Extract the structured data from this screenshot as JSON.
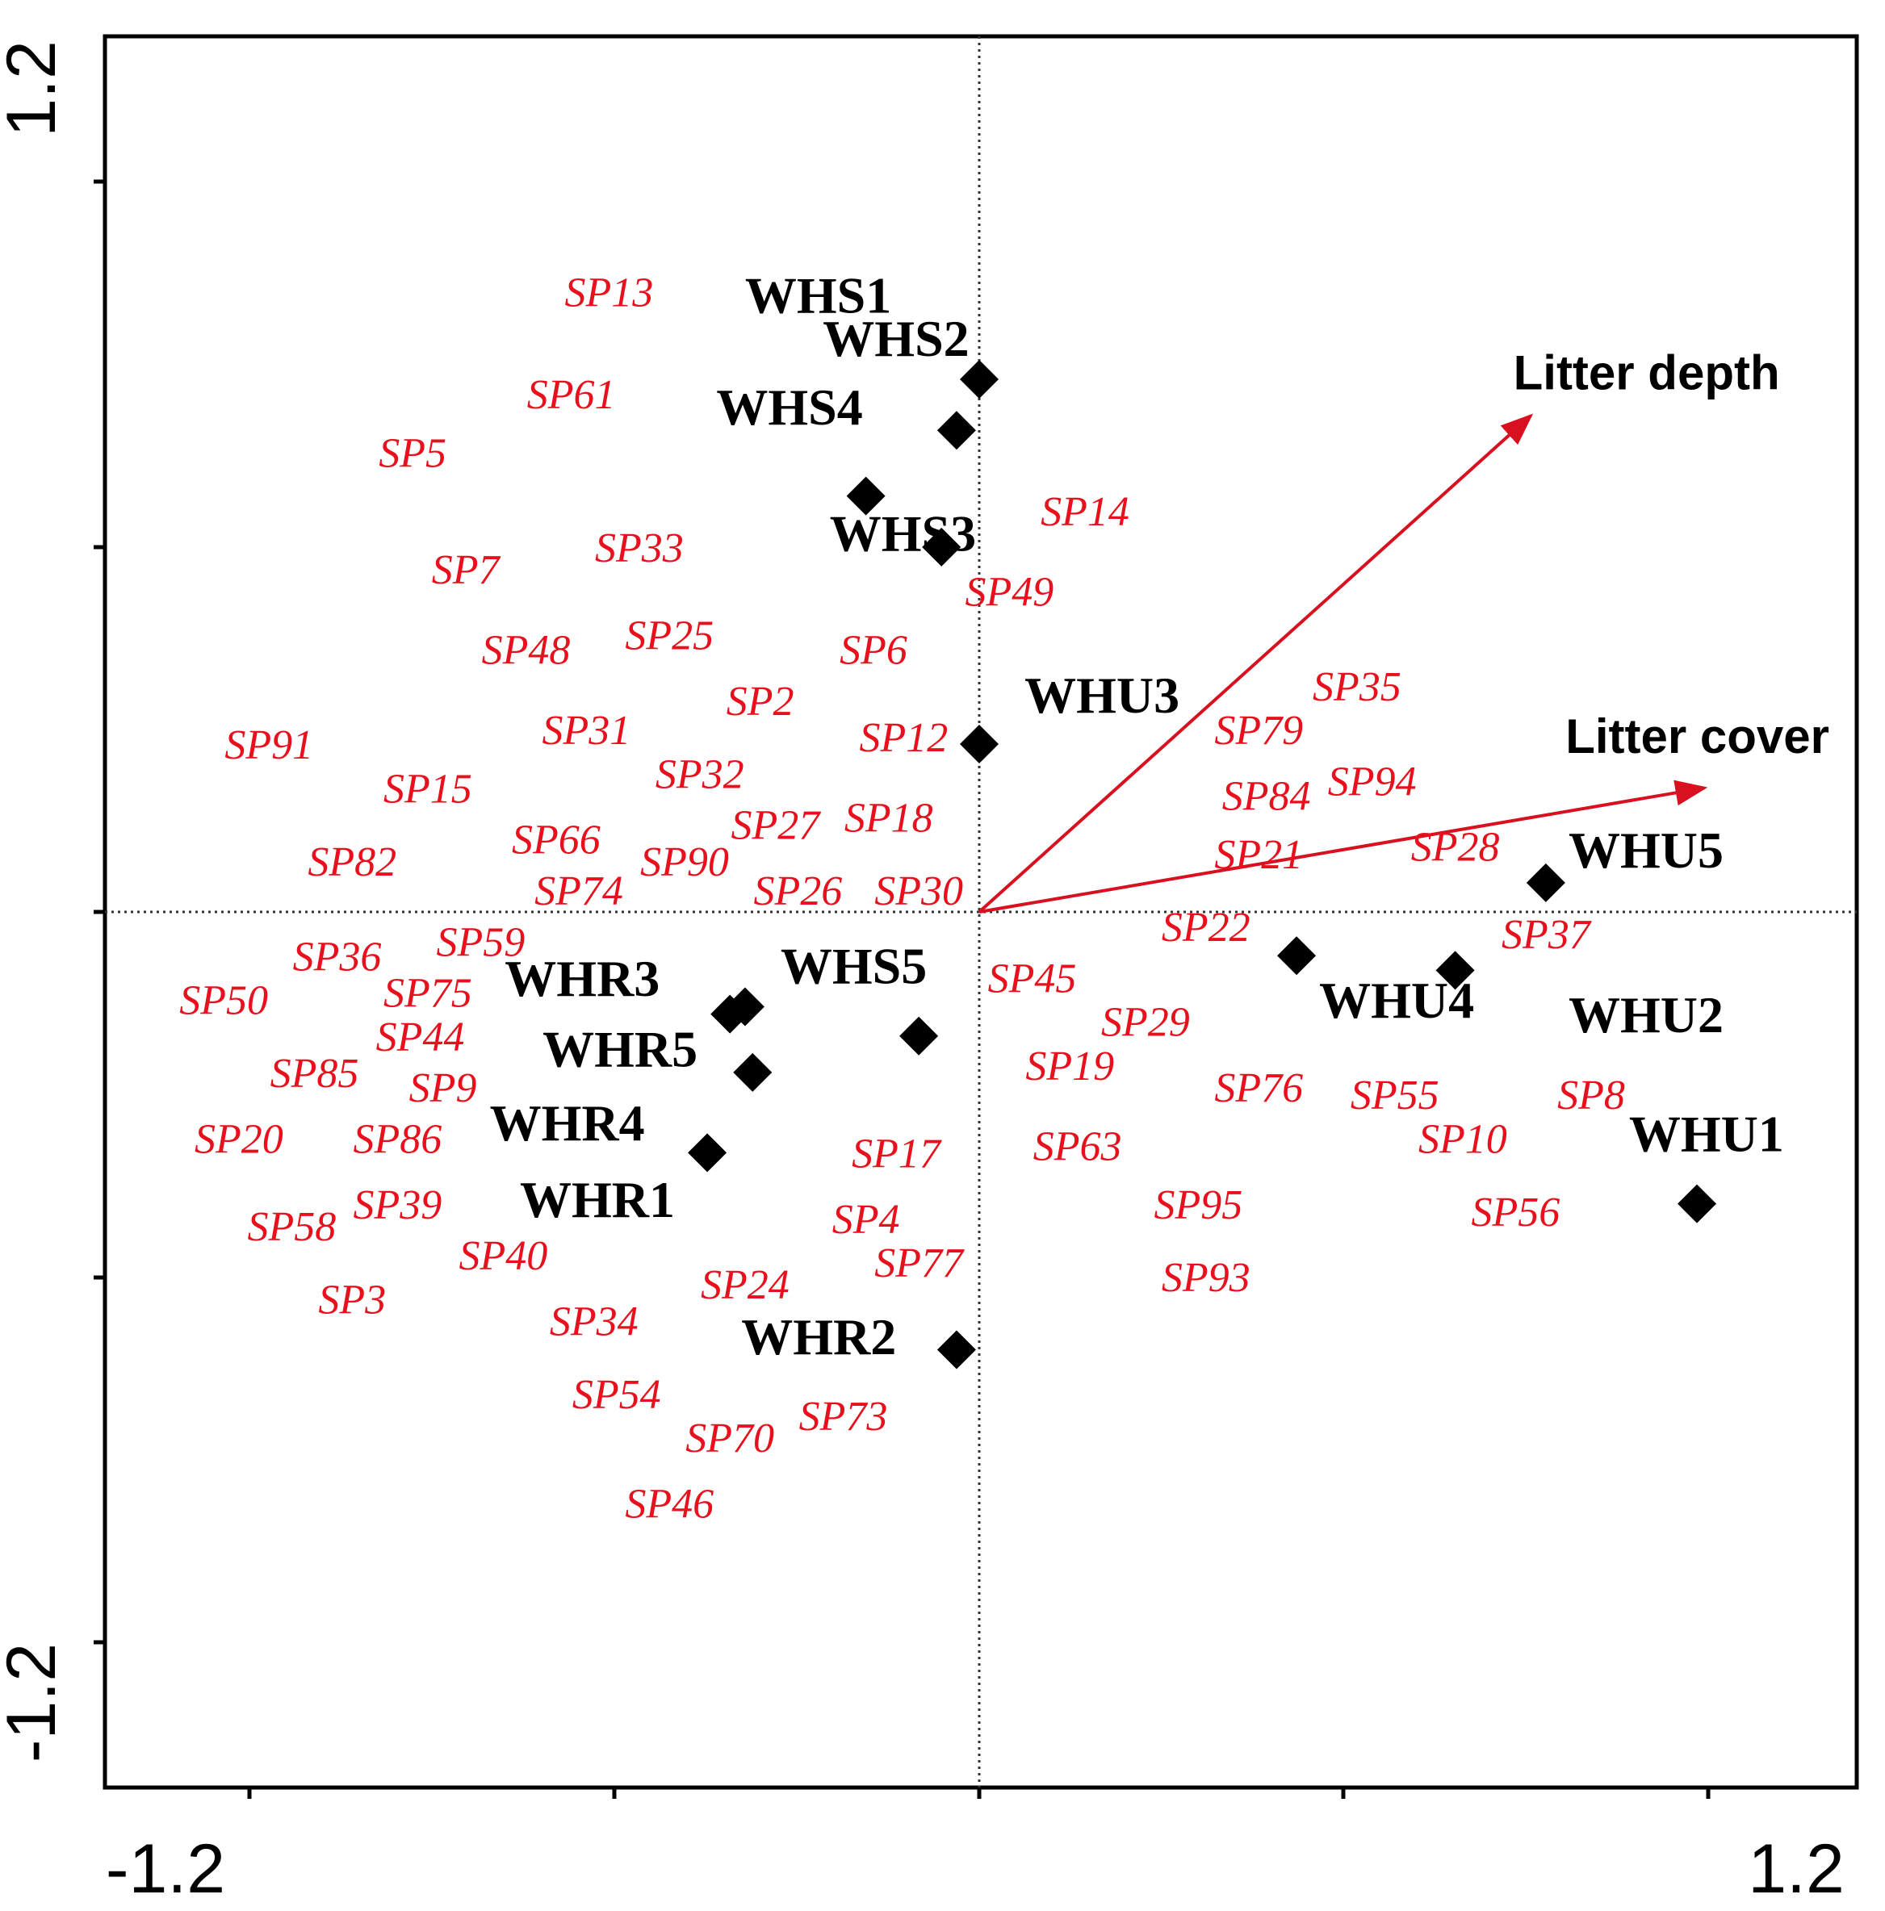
{
  "chart_data": {
    "type": "scatter",
    "xlim": [
      -1.2,
      1.2
    ],
    "ylim": [
      -1.2,
      1.2
    ],
    "x_ticks": [
      -1.2,
      1.2
    ],
    "y_ticks": [
      1.2,
      -1.2
    ],
    "x_tick_labels": [
      "-1.2",
      "1.2"
    ],
    "y_tick_labels": [
      "1.2",
      "-1.2"
    ],
    "grid": false,
    "colors": {
      "species": "#e8101c",
      "sites": "#000000",
      "arrows": "#d81020"
    },
    "env_vectors": [
      {
        "label": "Litter depth",
        "x": 0.73,
        "y": 0.68,
        "label_x": 0.707,
        "label_y": 0.716
      },
      {
        "label": "Litter cover",
        "x": 0.96,
        "y": 0.17,
        "label_x": 0.776,
        "label_y": 0.218
      }
    ],
    "sites": [
      {
        "label": "WHS1",
        "x": null,
        "y": null,
        "label_x": -0.31,
        "label_y": 0.821
      },
      {
        "label": "WHS2",
        "x": -0.03,
        "y": 0.66,
        "label_x": -0.207,
        "label_y": 0.762
      },
      {
        "label": "WHS4",
        "x": -0.15,
        "y": 0.57,
        "label_x": -0.348,
        "label_y": 0.668
      },
      {
        "label": "WHS3",
        "x": -0.05,
        "y": 0.5,
        "label_x": -0.198,
        "label_y": 0.495
      },
      {
        "label": "WHU3",
        "x": 0.0,
        "y": 0.23,
        "label_x": 0.06,
        "label_y": 0.273
      },
      {
        "label": "WHU5",
        "x": 0.75,
        "y": 0.04,
        "label_x": 0.78,
        "label_y": 0.061
      },
      {
        "label": "WHU4",
        "x": 0.42,
        "y": -0.06,
        "label_x": 0.45,
        "label_y": -0.145
      },
      {
        "label": "WHU2",
        "x": 0.63,
        "y": -0.08,
        "label_x": 0.78,
        "label_y": -0.165
      },
      {
        "label": "WHU1",
        "x": 0.95,
        "y": -0.4,
        "label_x": 0.86,
        "label_y": -0.328
      },
      {
        "label": "WHS5",
        "x": -0.08,
        "y": -0.17,
        "label_x": -0.263,
        "label_y": -0.098
      },
      {
        "label": "WHR3",
        "x": -0.33,
        "y": -0.14,
        "label_x": -0.628,
        "label_y": -0.115
      },
      {
        "label": "WHR5",
        "x": -0.3,
        "y": -0.22,
        "label_x": -0.578,
        "label_y": -0.212
      },
      {
        "label": "WHR4",
        "x": -0.36,
        "y": -0.33,
        "label_x": -0.648,
        "label_y": -0.313
      },
      {
        "label": "WHR1",
        "x": null,
        "y": null,
        "label_x": -0.608,
        "label_y": -0.418
      },
      {
        "label": "WHR2",
        "x": -0.03,
        "y": -0.6,
        "label_x": -0.315,
        "label_y": -0.606
      },
      {
        "label": "",
        "x": -0.31,
        "y": -0.13
      },
      {
        "label": "",
        "x": 0.0,
        "y": 0.73
      }
    ],
    "species": [
      {
        "label": "SP13",
        "x": -0.49,
        "y": 0.83
      },
      {
        "label": "SP61",
        "x": -0.54,
        "y": 0.69
      },
      {
        "label": "SP5",
        "x": -0.75,
        "y": 0.61
      },
      {
        "label": "SP7",
        "x": -0.68,
        "y": 0.45
      },
      {
        "label": "SP33",
        "x": -0.45,
        "y": 0.48
      },
      {
        "label": "SP14",
        "x": 0.14,
        "y": 0.53
      },
      {
        "label": "SP49",
        "x": 0.04,
        "y": 0.42
      },
      {
        "label": "SP48",
        "x": -0.6,
        "y": 0.34
      },
      {
        "label": "SP25",
        "x": -0.41,
        "y": 0.36
      },
      {
        "label": "SP6",
        "x": -0.14,
        "y": 0.34
      },
      {
        "label": "SP2",
        "x": -0.29,
        "y": 0.27
      },
      {
        "label": "SP91",
        "x": -0.94,
        "y": 0.21
      },
      {
        "label": "SP31",
        "x": -0.52,
        "y": 0.23
      },
      {
        "label": "SP12",
        "x": -0.1,
        "y": 0.22
      },
      {
        "label": "SP15",
        "x": -0.73,
        "y": 0.15
      },
      {
        "label": "SP32",
        "x": -0.37,
        "y": 0.17
      },
      {
        "label": "SP27",
        "x": -0.27,
        "y": 0.1
      },
      {
        "label": "SP18",
        "x": -0.12,
        "y": 0.11
      },
      {
        "label": "SP66",
        "x": -0.56,
        "y": 0.08
      },
      {
        "label": "SP82",
        "x": -0.83,
        "y": 0.05
      },
      {
        "label": "SP90",
        "x": -0.39,
        "y": 0.05
      },
      {
        "label": "SP74",
        "x": -0.53,
        "y": 0.01
      },
      {
        "label": "SP26",
        "x": -0.24,
        "y": 0.01
      },
      {
        "label": "SP30",
        "x": -0.08,
        "y": 0.01
      },
      {
        "label": "SP59",
        "x": -0.66,
        "y": -0.06
      },
      {
        "label": "SP36",
        "x": -0.85,
        "y": -0.08
      },
      {
        "label": "SP50",
        "x": -1.0,
        "y": -0.14
      },
      {
        "label": "SP75",
        "x": -0.73,
        "y": -0.13
      },
      {
        "label": "SP44",
        "x": -0.74,
        "y": -0.19
      },
      {
        "label": "SP85",
        "x": -0.88,
        "y": -0.24
      },
      {
        "label": "SP9",
        "x": -0.71,
        "y": -0.26
      },
      {
        "label": "SP20",
        "x": -0.98,
        "y": -0.33
      },
      {
        "label": "SP86",
        "x": -0.77,
        "y": -0.33
      },
      {
        "label": "SP39",
        "x": -0.77,
        "y": -0.42
      },
      {
        "label": "SP58",
        "x": -0.91,
        "y": -0.45
      },
      {
        "label": "SP40",
        "x": -0.63,
        "y": -0.49
      },
      {
        "label": "SP3",
        "x": -0.83,
        "y": -0.55
      },
      {
        "label": "SP34",
        "x": -0.51,
        "y": -0.58
      },
      {
        "label": "SP54",
        "x": -0.48,
        "y": -0.68
      },
      {
        "label": "SP70",
        "x": -0.33,
        "y": -0.74
      },
      {
        "label": "SP73",
        "x": -0.18,
        "y": -0.71
      },
      {
        "label": "SP46",
        "x": -0.41,
        "y": -0.83
      },
      {
        "label": "SP17",
        "x": -0.11,
        "y": -0.35
      },
      {
        "label": "SP4",
        "x": -0.15,
        "y": -0.44
      },
      {
        "label": "SP77",
        "x": -0.08,
        "y": -0.5
      },
      {
        "label": "SP24",
        "x": -0.31,
        "y": -0.53
      },
      {
        "label": "SP45",
        "x": 0.07,
        "y": -0.11
      },
      {
        "label": "SP29",
        "x": 0.22,
        "y": -0.17
      },
      {
        "label": "SP19",
        "x": 0.12,
        "y": -0.23
      },
      {
        "label": "SP63",
        "x": 0.13,
        "y": -0.34
      },
      {
        "label": "SP76",
        "x": 0.37,
        "y": -0.26
      },
      {
        "label": "SP95",
        "x": 0.29,
        "y": -0.42
      },
      {
        "label": "SP93",
        "x": 0.3,
        "y": -0.52
      },
      {
        "label": "SP35",
        "x": 0.5,
        "y": 0.29
      },
      {
        "label": "SP79",
        "x": 0.37,
        "y": 0.23
      },
      {
        "label": "SP84",
        "x": 0.38,
        "y": 0.14
      },
      {
        "label": "SP94",
        "x": 0.52,
        "y": 0.16
      },
      {
        "label": "SP21",
        "x": 0.37,
        "y": 0.06
      },
      {
        "label": "SP28",
        "x": 0.63,
        "y": 0.07
      },
      {
        "label": "SP22",
        "x": 0.3,
        "y": -0.04
      },
      {
        "label": "SP37",
        "x": 0.75,
        "y": -0.05
      },
      {
        "label": "SP55",
        "x": 0.55,
        "y": -0.27
      },
      {
        "label": "SP8",
        "x": 0.81,
        "y": -0.27
      },
      {
        "label": "SP10",
        "x": 0.64,
        "y": -0.33
      },
      {
        "label": "SP56",
        "x": 0.71,
        "y": -0.43
      }
    ]
  }
}
